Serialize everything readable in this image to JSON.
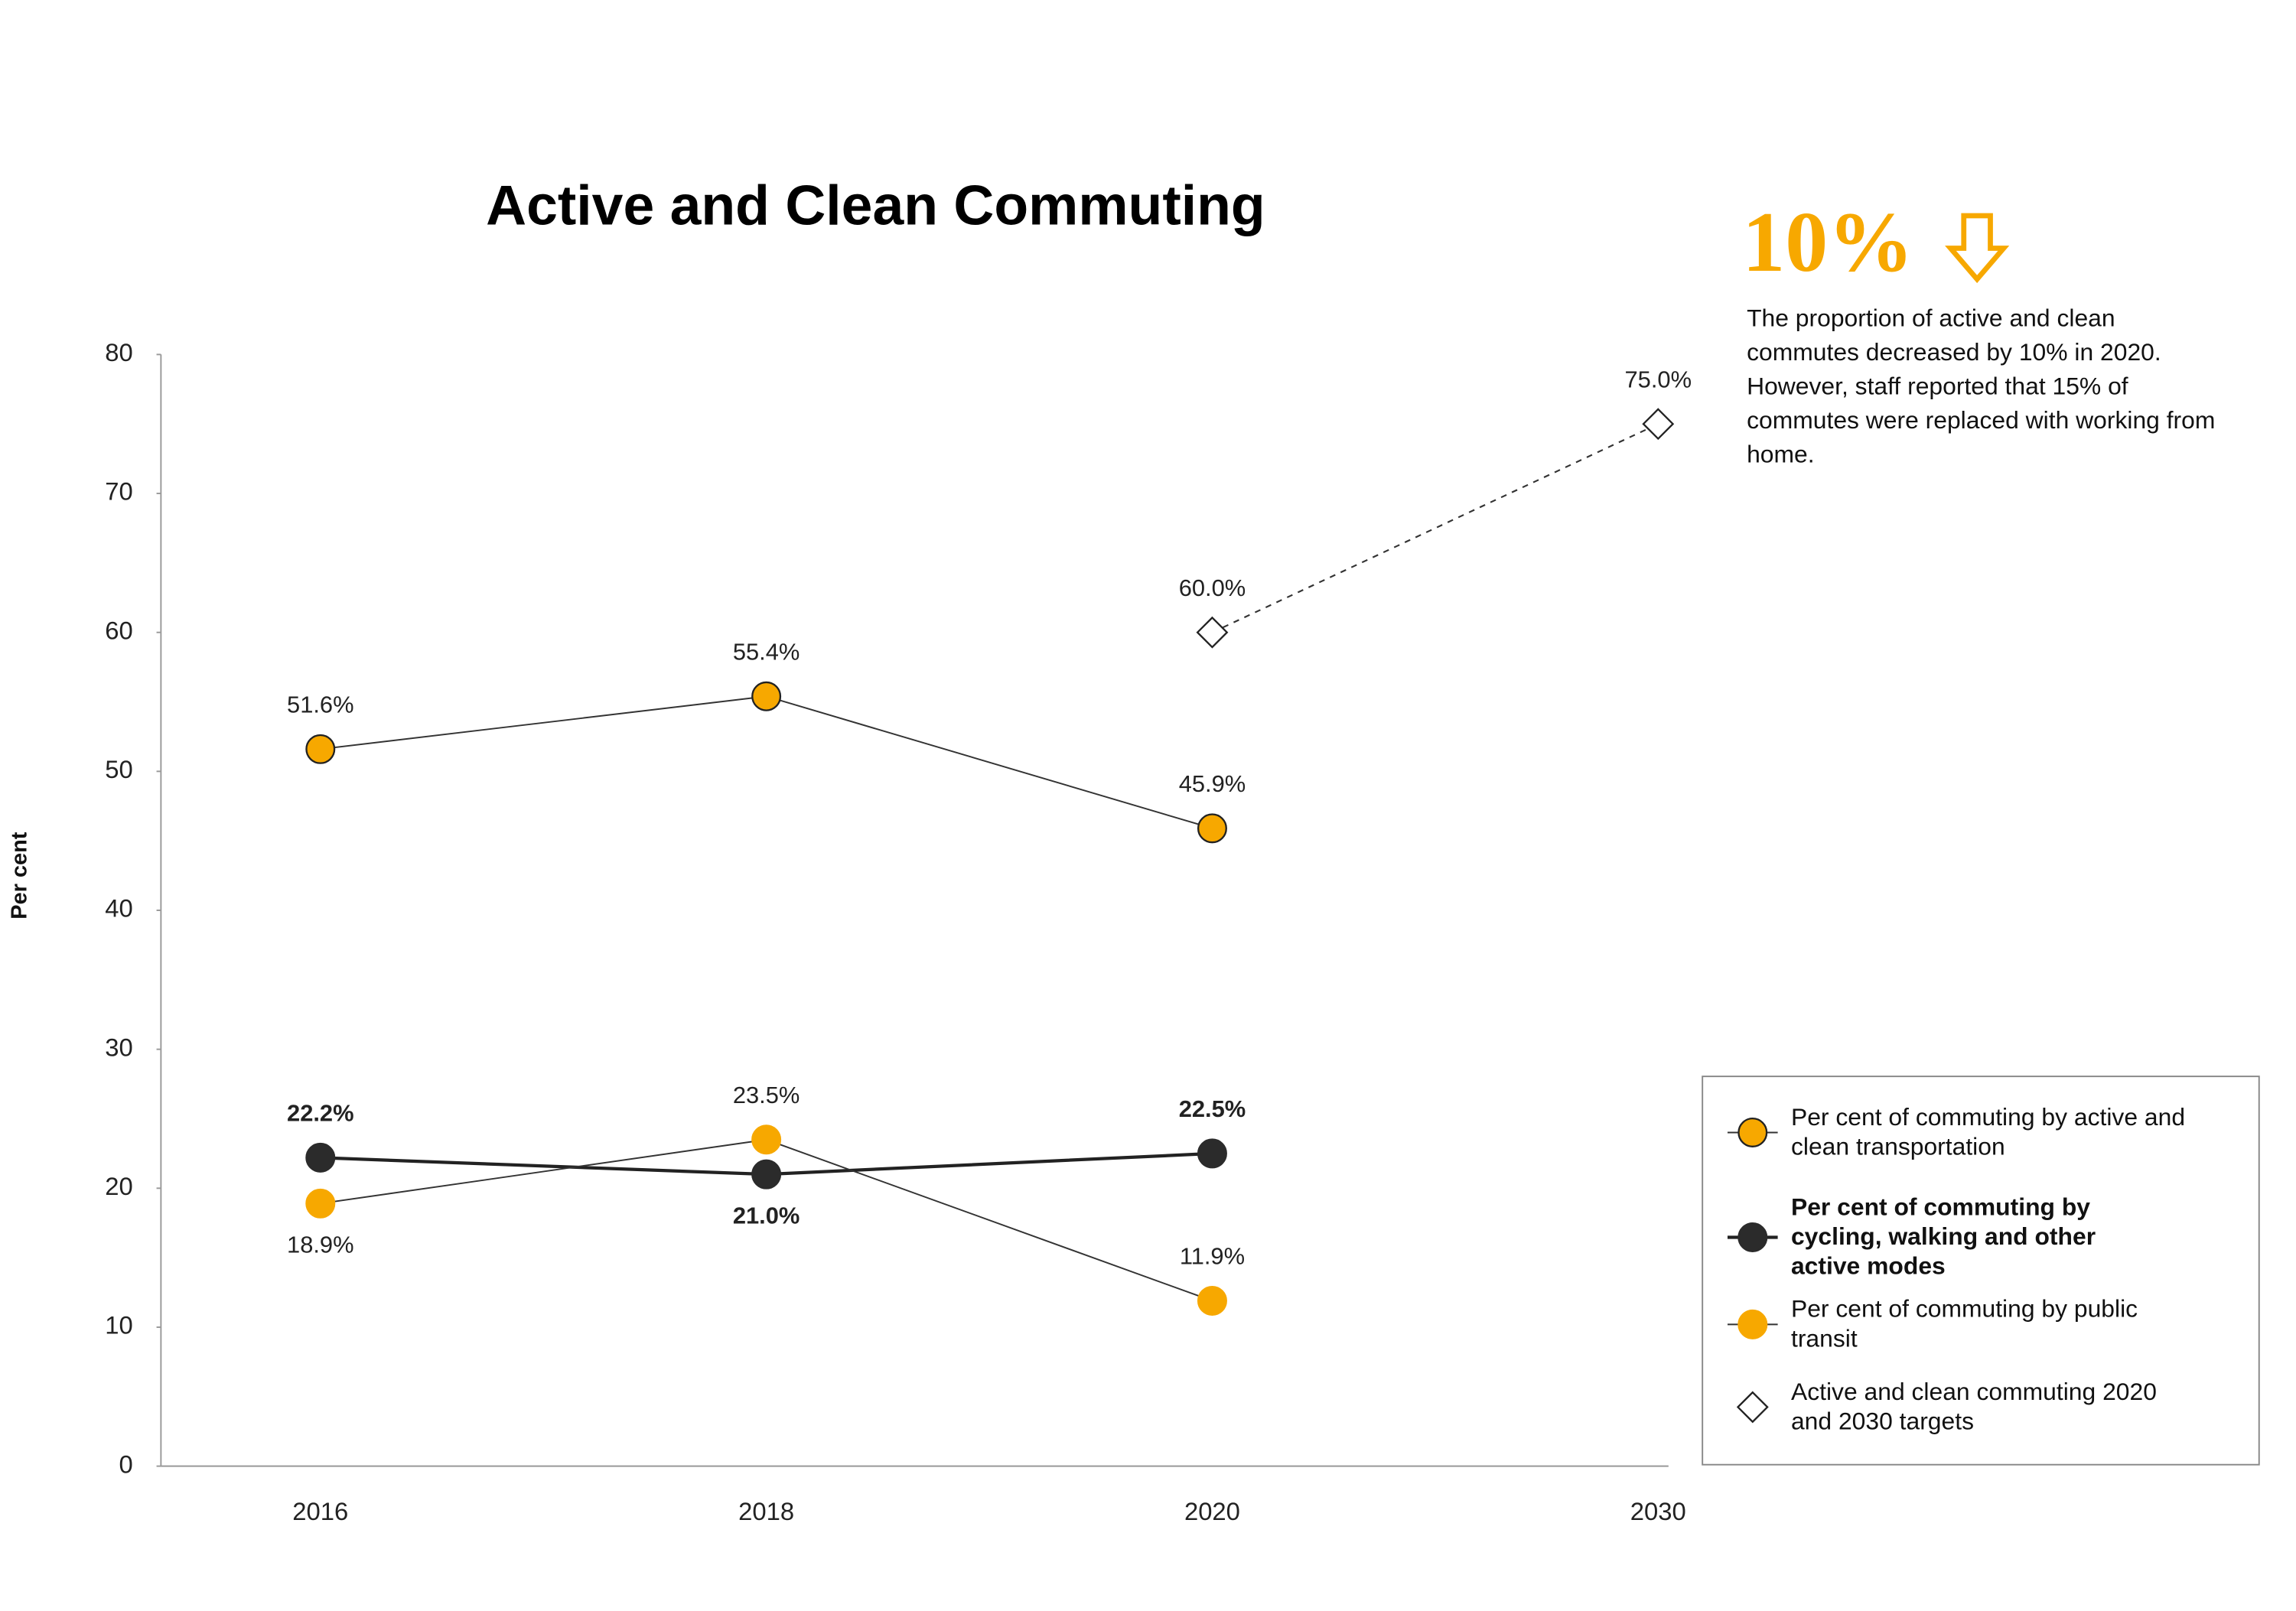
{
  "chart_data": {
    "type": "line",
    "title": "Active and Clean Commuting",
    "y_label": "Per cent",
    "categories": [
      "2016",
      "2018",
      "2020",
      "2030"
    ],
    "ylim": [
      0,
      80
    ],
    "yticks": [
      0,
      10,
      20,
      30,
      40,
      50,
      60,
      70,
      80
    ],
    "series": [
      {
        "name": "Per cent of commuting by active and clean transportation",
        "color": "#f7a800",
        "edge": "#222222",
        "marker": "circle",
        "line": "solid",
        "bold": false,
        "values": [
          51.6,
          55.4,
          45.9,
          null
        ],
        "value_labels": [
          "51.6%",
          "55.4%",
          "45.9%",
          null
        ]
      },
      {
        "name": "Per cent of commuting by cycling, walking and other active modes",
        "color": "#2b2b2b",
        "edge": "#2b2b2b",
        "marker": "circle",
        "line": "thick",
        "bold": true,
        "values": [
          22.2,
          21.0,
          22.5,
          null
        ],
        "value_labels": [
          "22.2%",
          "21.0%",
          "22.5%",
          null
        ]
      },
      {
        "name": "Per cent of commuting by public transit",
        "color": "#f7a800",
        "edge": "#f7a800",
        "marker": "circle",
        "line": "solid",
        "bold": false,
        "values": [
          18.9,
          23.5,
          11.9,
          null
        ],
        "value_labels": [
          "18.9%",
          "23.5%",
          "11.9%",
          null
        ]
      },
      {
        "name": "Active and clean commuting 2020 and 2030 targets",
        "color": "#ffffff",
        "edge": "#222222",
        "marker": "diamond",
        "line": "dashed",
        "bold": false,
        "values": [
          null,
          null,
          60.0,
          75.0
        ],
        "value_labels": [
          null,
          null,
          "60.0%",
          "75.0%"
        ]
      }
    ],
    "annotation": {
      "headline": "10%",
      "text": "The proportion of active and clean commutes decreased by 10% in 2020. However, staff reported that 15% of commutes were replaced with working from home."
    },
    "legend": "lower right",
    "grid": false
  }
}
